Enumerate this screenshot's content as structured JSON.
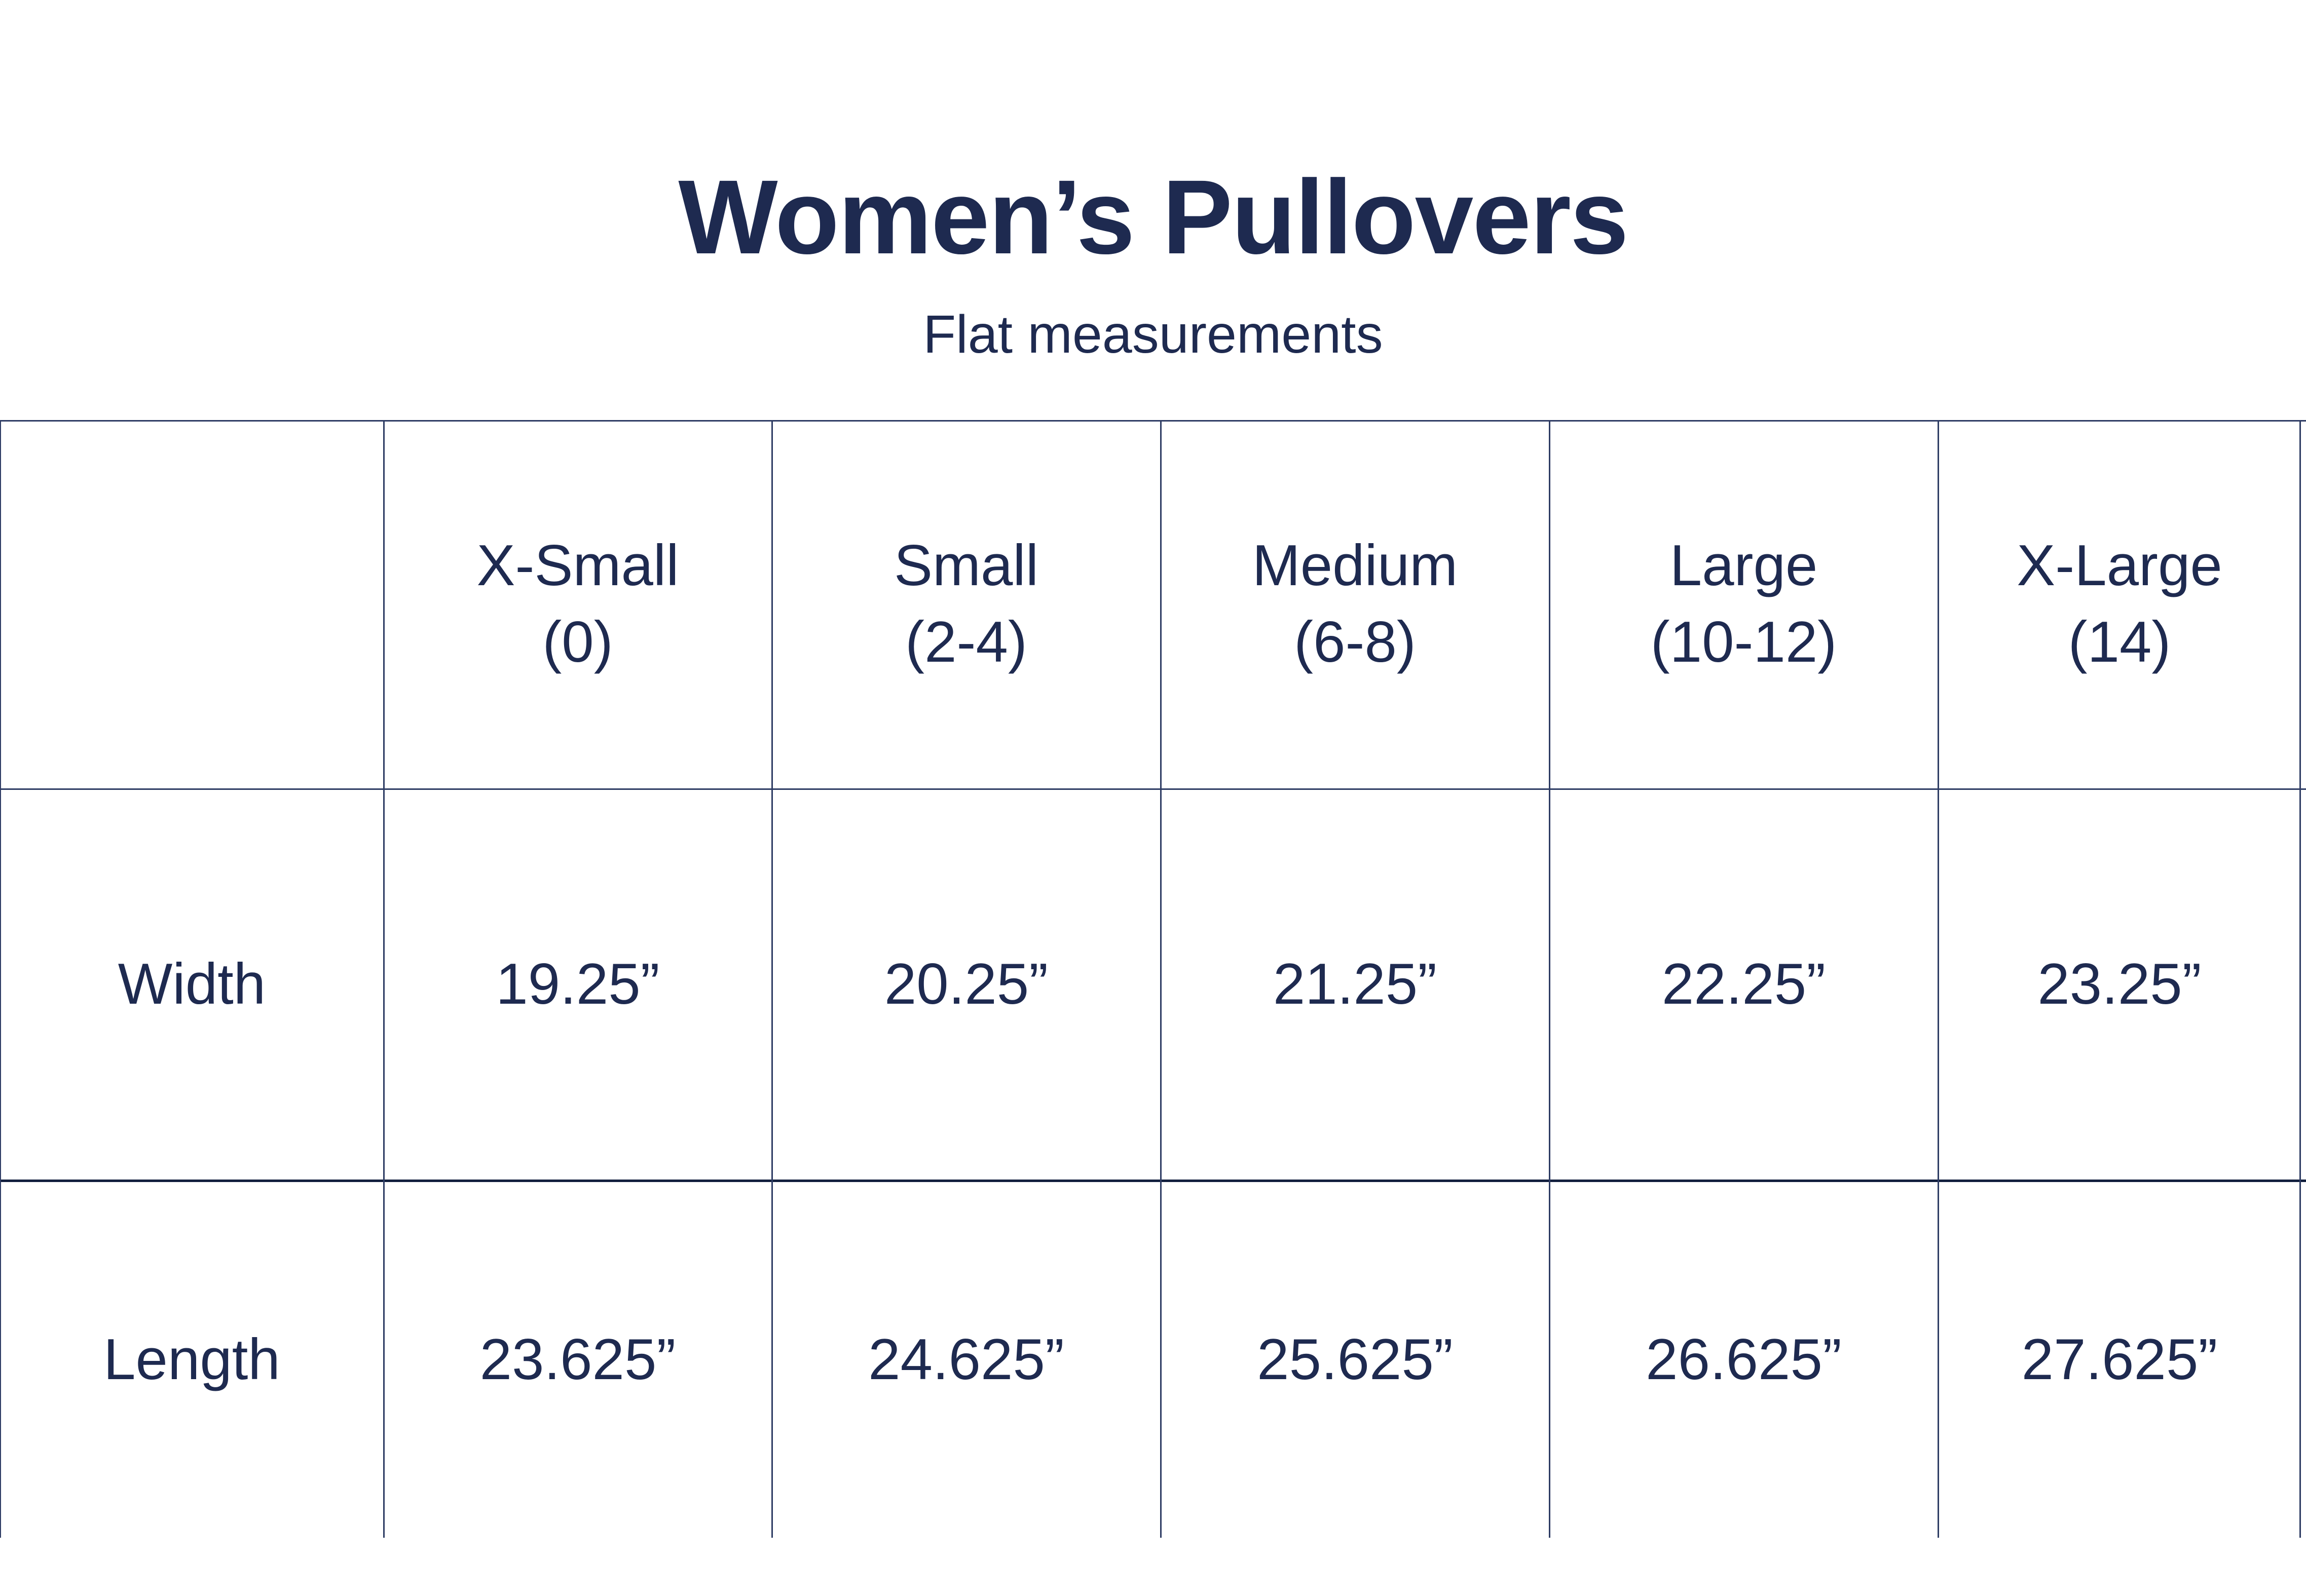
{
  "colors": {
    "text_navy": "#1e2a50",
    "grid_line": "#2e3c64",
    "divider_line": "#13203f",
    "background": "#ffffff"
  },
  "chart_data": {
    "type": "table",
    "title": "Women’s Pullovers",
    "subtitle": "Flat measurements",
    "column_headers": [
      {
        "size": "X-Small",
        "range": "(0)"
      },
      {
        "size": "Small",
        "range": "(2-4)"
      },
      {
        "size": "Medium",
        "range": "(6-8)"
      },
      {
        "size": "Large",
        "range": "(10-12)"
      },
      {
        "size": "X-Large",
        "range": "(14)"
      }
    ],
    "rows": [
      {
        "label": "Width",
        "values": [
          "19.25”",
          "20.25”",
          "21.25”",
          "22.25”",
          "23.25”"
        ]
      },
      {
        "label": "Length",
        "values": [
          "23.625”",
          "24.625”",
          "25.625”",
          "26.625”",
          "27.625”"
        ]
      }
    ]
  }
}
